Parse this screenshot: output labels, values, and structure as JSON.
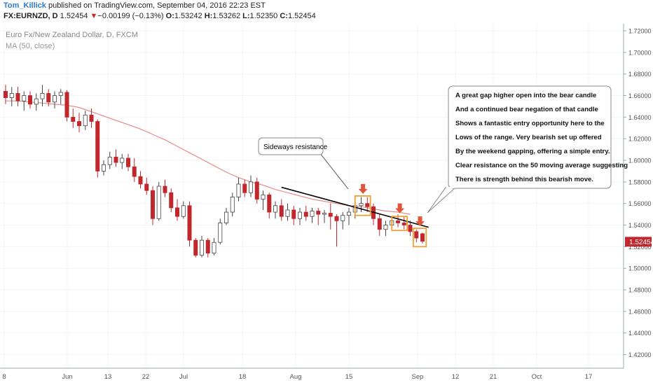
{
  "header": {
    "user": "Tom_Killick",
    "published": "published on TradingView.com, September 04, 2016 22:23 EST",
    "symbol": "FX:EURNZD, D",
    "last": "1.52454",
    "change_arrow": "▼",
    "change": "−0.00199 (−0.13%)",
    "o_label": "O:",
    "o": "1.53242",
    "h_label": "H:",
    "h": "1.53262",
    "l_label": "L:",
    "l": "1.52350",
    "c_label": "C:",
    "c": "1.52454"
  },
  "colors": {
    "bull": "#ffffff",
    "bear": "#c0282d",
    "ma": "#e98a8a",
    "box": "#f0a030",
    "arrow": "#e0563a",
    "trendline": "#000000",
    "price_tag": "#c0282d"
  },
  "chart_data": {
    "type": "candlestick",
    "title": "Euro Fx/New Zealand Dollar, D, FXCM",
    "indicator": "MA (50, close)",
    "ylim": [
      1.41,
      1.72
    ],
    "yticks": [
      "1.72000",
      "1.70000",
      "1.68000",
      "1.66000",
      "1.64000",
      "1.62000",
      "1.60000",
      "1.58000",
      "1.56000",
      "1.54000",
      "1.52000",
      "1.50000",
      "1.48000",
      "1.46000",
      "1.44000",
      "1.42000"
    ],
    "xticks": [
      "8",
      "Jun",
      "13",
      "22",
      "Jul",
      "18",
      "Aug",
      "15",
      "Sep",
      "12",
      "21",
      "Oct",
      "17"
    ],
    "last_price_label": "1.52454",
    "candles": [
      {
        "o": 1.664,
        "h": 1.67,
        "l": 1.652,
        "c": 1.658
      },
      {
        "o": 1.658,
        "h": 1.668,
        "l": 1.65,
        "c": 1.662
      },
      {
        "o": 1.662,
        "h": 1.668,
        "l": 1.65,
        "c": 1.655
      },
      {
        "o": 1.655,
        "h": 1.664,
        "l": 1.646,
        "c": 1.66
      },
      {
        "o": 1.66,
        "h": 1.664,
        "l": 1.648,
        "c": 1.652
      },
      {
        "o": 1.652,
        "h": 1.662,
        "l": 1.646,
        "c": 1.657
      },
      {
        "o": 1.657,
        "h": 1.67,
        "l": 1.65,
        "c": 1.662
      },
      {
        "o": 1.662,
        "h": 1.666,
        "l": 1.65,
        "c": 1.654
      },
      {
        "o": 1.654,
        "h": 1.664,
        "l": 1.648,
        "c": 1.66
      },
      {
        "o": 1.66,
        "h": 1.666,
        "l": 1.652,
        "c": 1.663
      },
      {
        "o": 1.663,
        "h": 1.665,
        "l": 1.636,
        "c": 1.64
      },
      {
        "o": 1.64,
        "h": 1.648,
        "l": 1.63,
        "c": 1.636
      },
      {
        "o": 1.636,
        "h": 1.644,
        "l": 1.626,
        "c": 1.632
      },
      {
        "o": 1.632,
        "h": 1.646,
        "l": 1.628,
        "c": 1.642
      },
      {
        "o": 1.642,
        "h": 1.648,
        "l": 1.63,
        "c": 1.636
      },
      {
        "o": 1.636,
        "h": 1.638,
        "l": 1.584,
        "c": 1.59
      },
      {
        "o": 1.59,
        "h": 1.6,
        "l": 1.586,
        "c": 1.596
      },
      {
        "o": 1.596,
        "h": 1.608,
        "l": 1.592,
        "c": 1.603
      },
      {
        "o": 1.603,
        "h": 1.61,
        "l": 1.594,
        "c": 1.598
      },
      {
        "o": 1.598,
        "h": 1.606,
        "l": 1.592,
        "c": 1.602
      },
      {
        "o": 1.602,
        "h": 1.606,
        "l": 1.59,
        "c": 1.594
      },
      {
        "o": 1.594,
        "h": 1.602,
        "l": 1.58,
        "c": 1.585
      },
      {
        "o": 1.585,
        "h": 1.59,
        "l": 1.574,
        "c": 1.578
      },
      {
        "o": 1.578,
        "h": 1.584,
        "l": 1.568,
        "c": 1.572
      },
      {
        "o": 1.572,
        "h": 1.576,
        "l": 1.54,
        "c": 1.546
      },
      {
        "o": 1.546,
        "h": 1.58,
        "l": 1.544,
        "c": 1.576
      },
      {
        "o": 1.576,
        "h": 1.582,
        "l": 1.566,
        "c": 1.57
      },
      {
        "o": 1.57,
        "h": 1.574,
        "l": 1.552,
        "c": 1.556
      },
      {
        "o": 1.556,
        "h": 1.564,
        "l": 1.544,
        "c": 1.548
      },
      {
        "o": 1.548,
        "h": 1.562,
        "l": 1.546,
        "c": 1.558
      },
      {
        "o": 1.558,
        "h": 1.562,
        "l": 1.52,
        "c": 1.526
      },
      {
        "o": 1.526,
        "h": 1.528,
        "l": 1.51,
        "c": 1.512
      },
      {
        "o": 1.512,
        "h": 1.53,
        "l": 1.51,
        "c": 1.526
      },
      {
        "o": 1.526,
        "h": 1.528,
        "l": 1.51,
        "c": 1.514
      },
      {
        "o": 1.514,
        "h": 1.528,
        "l": 1.512,
        "c": 1.524
      },
      {
        "o": 1.524,
        "h": 1.546,
        "l": 1.522,
        "c": 1.542
      },
      {
        "o": 1.542,
        "h": 1.556,
        "l": 1.54,
        "c": 1.552
      },
      {
        "o": 1.552,
        "h": 1.57,
        "l": 1.548,
        "c": 1.566
      },
      {
        "o": 1.566,
        "h": 1.584,
        "l": 1.562,
        "c": 1.578
      },
      {
        "o": 1.578,
        "h": 1.582,
        "l": 1.566,
        "c": 1.57
      },
      {
        "o": 1.57,
        "h": 1.586,
        "l": 1.566,
        "c": 1.58
      },
      {
        "o": 1.58,
        "h": 1.584,
        "l": 1.56,
        "c": 1.564
      },
      {
        "o": 1.564,
        "h": 1.572,
        "l": 1.554,
        "c": 1.568
      },
      {
        "o": 1.568,
        "h": 1.57,
        "l": 1.546,
        "c": 1.552
      },
      {
        "o": 1.552,
        "h": 1.562,
        "l": 1.546,
        "c": 1.558
      },
      {
        "o": 1.558,
        "h": 1.564,
        "l": 1.544,
        "c": 1.548
      },
      {
        "o": 1.548,
        "h": 1.56,
        "l": 1.544,
        "c": 1.554
      },
      {
        "o": 1.554,
        "h": 1.558,
        "l": 1.54,
        "c": 1.546
      },
      {
        "o": 1.546,
        "h": 1.556,
        "l": 1.54,
        "c": 1.552
      },
      {
        "o": 1.552,
        "h": 1.558,
        "l": 1.544,
        "c": 1.548
      },
      {
        "o": 1.548,
        "h": 1.556,
        "l": 1.542,
        "c": 1.553
      },
      {
        "o": 1.553,
        "h": 1.556,
        "l": 1.54,
        "c": 1.55
      },
      {
        "o": 1.55,
        "h": 1.554,
        "l": 1.542,
        "c": 1.551
      },
      {
        "o": 1.551,
        "h": 1.56,
        "l": 1.536,
        "c": 1.548
      },
      {
        "o": 1.548,
        "h": 1.55,
        "l": 1.52,
        "c": 1.544
      },
      {
        "o": 1.544,
        "h": 1.552,
        "l": 1.536,
        "c": 1.549
      },
      {
        "o": 1.549,
        "h": 1.556,
        "l": 1.54,
        "c": 1.552
      },
      {
        "o": 1.552,
        "h": 1.562,
        "l": 1.546,
        "c": 1.558
      },
      {
        "o": 1.558,
        "h": 1.566,
        "l": 1.552,
        "c": 1.56
      },
      {
        "o": 1.56,
        "h": 1.566,
        "l": 1.552,
        "c": 1.557
      },
      {
        "o": 1.557,
        "h": 1.56,
        "l": 1.54,
        "c": 1.546
      },
      {
        "o": 1.546,
        "h": 1.55,
        "l": 1.53,
        "c": 1.536
      },
      {
        "o": 1.536,
        "h": 1.544,
        "l": 1.53,
        "c": 1.54
      },
      {
        "o": 1.54,
        "h": 1.548,
        "l": 1.536,
        "c": 1.544
      },
      {
        "o": 1.544,
        "h": 1.55,
        "l": 1.538,
        "c": 1.542
      },
      {
        "o": 1.542,
        "h": 1.548,
        "l": 1.536,
        "c": 1.54
      },
      {
        "o": 1.54,
        "h": 1.544,
        "l": 1.53,
        "c": 1.534
      },
      {
        "o": 1.534,
        "h": 1.536,
        "l": 1.524,
        "c": 1.528
      },
      {
        "o": 1.532,
        "h": 1.533,
        "l": 1.523,
        "c": 1.525
      }
    ],
    "moving_average": [
      1.655,
      1.655,
      1.654,
      1.653,
      1.652,
      1.651,
      1.649,
      1.645,
      1.641,
      1.637,
      1.633,
      1.629,
      1.624,
      1.619,
      1.613,
      1.607,
      1.601,
      1.595,
      1.589,
      1.584,
      1.58,
      1.577,
      1.573,
      1.57,
      1.567,
      1.564,
      1.562,
      1.56,
      1.558,
      1.557,
      1.555,
      1.553,
      1.552,
      1.55
    ],
    "ma_start_index": 0,
    "ma_step": 2,
    "trendline": {
      "from": {
        "i": 45,
        "y": 1.575
      },
      "to": {
        "i": 69,
        "y": 1.538
      }
    },
    "boxes": [
      {
        "i0": 57,
        "i1": 59.5,
        "y0": 1.549,
        "y1": 1.567
      },
      {
        "i0": 63,
        "i1": 65.5,
        "y0": 1.535,
        "y1": 1.548
      },
      {
        "i0": 66.5,
        "i1": 68.6,
        "y0": 1.52,
        "y1": 1.537
      }
    ],
    "arrows": [
      {
        "i": 58.3,
        "y": 1.569
      },
      {
        "i": 64.3,
        "y": 1.551
      },
      {
        "i": 67.6,
        "y": 1.539
      }
    ],
    "annotations": [
      {
        "id": "sideways",
        "text": "Sideways resistance"
      },
      {
        "id": "main",
        "lines": [
          "A great gap higher open into the bear candle",
          "And a continued bear negation of that candle",
          "Shows a fantastic entry opportunity here to the",
          "Lows of the range. Very bearish set up offered",
          "By the weekend gapping, offering a simple entry.",
          "Clear resistance on the 50 moving average suggesting",
          "There is strength behind this bearish move."
        ]
      }
    ]
  }
}
